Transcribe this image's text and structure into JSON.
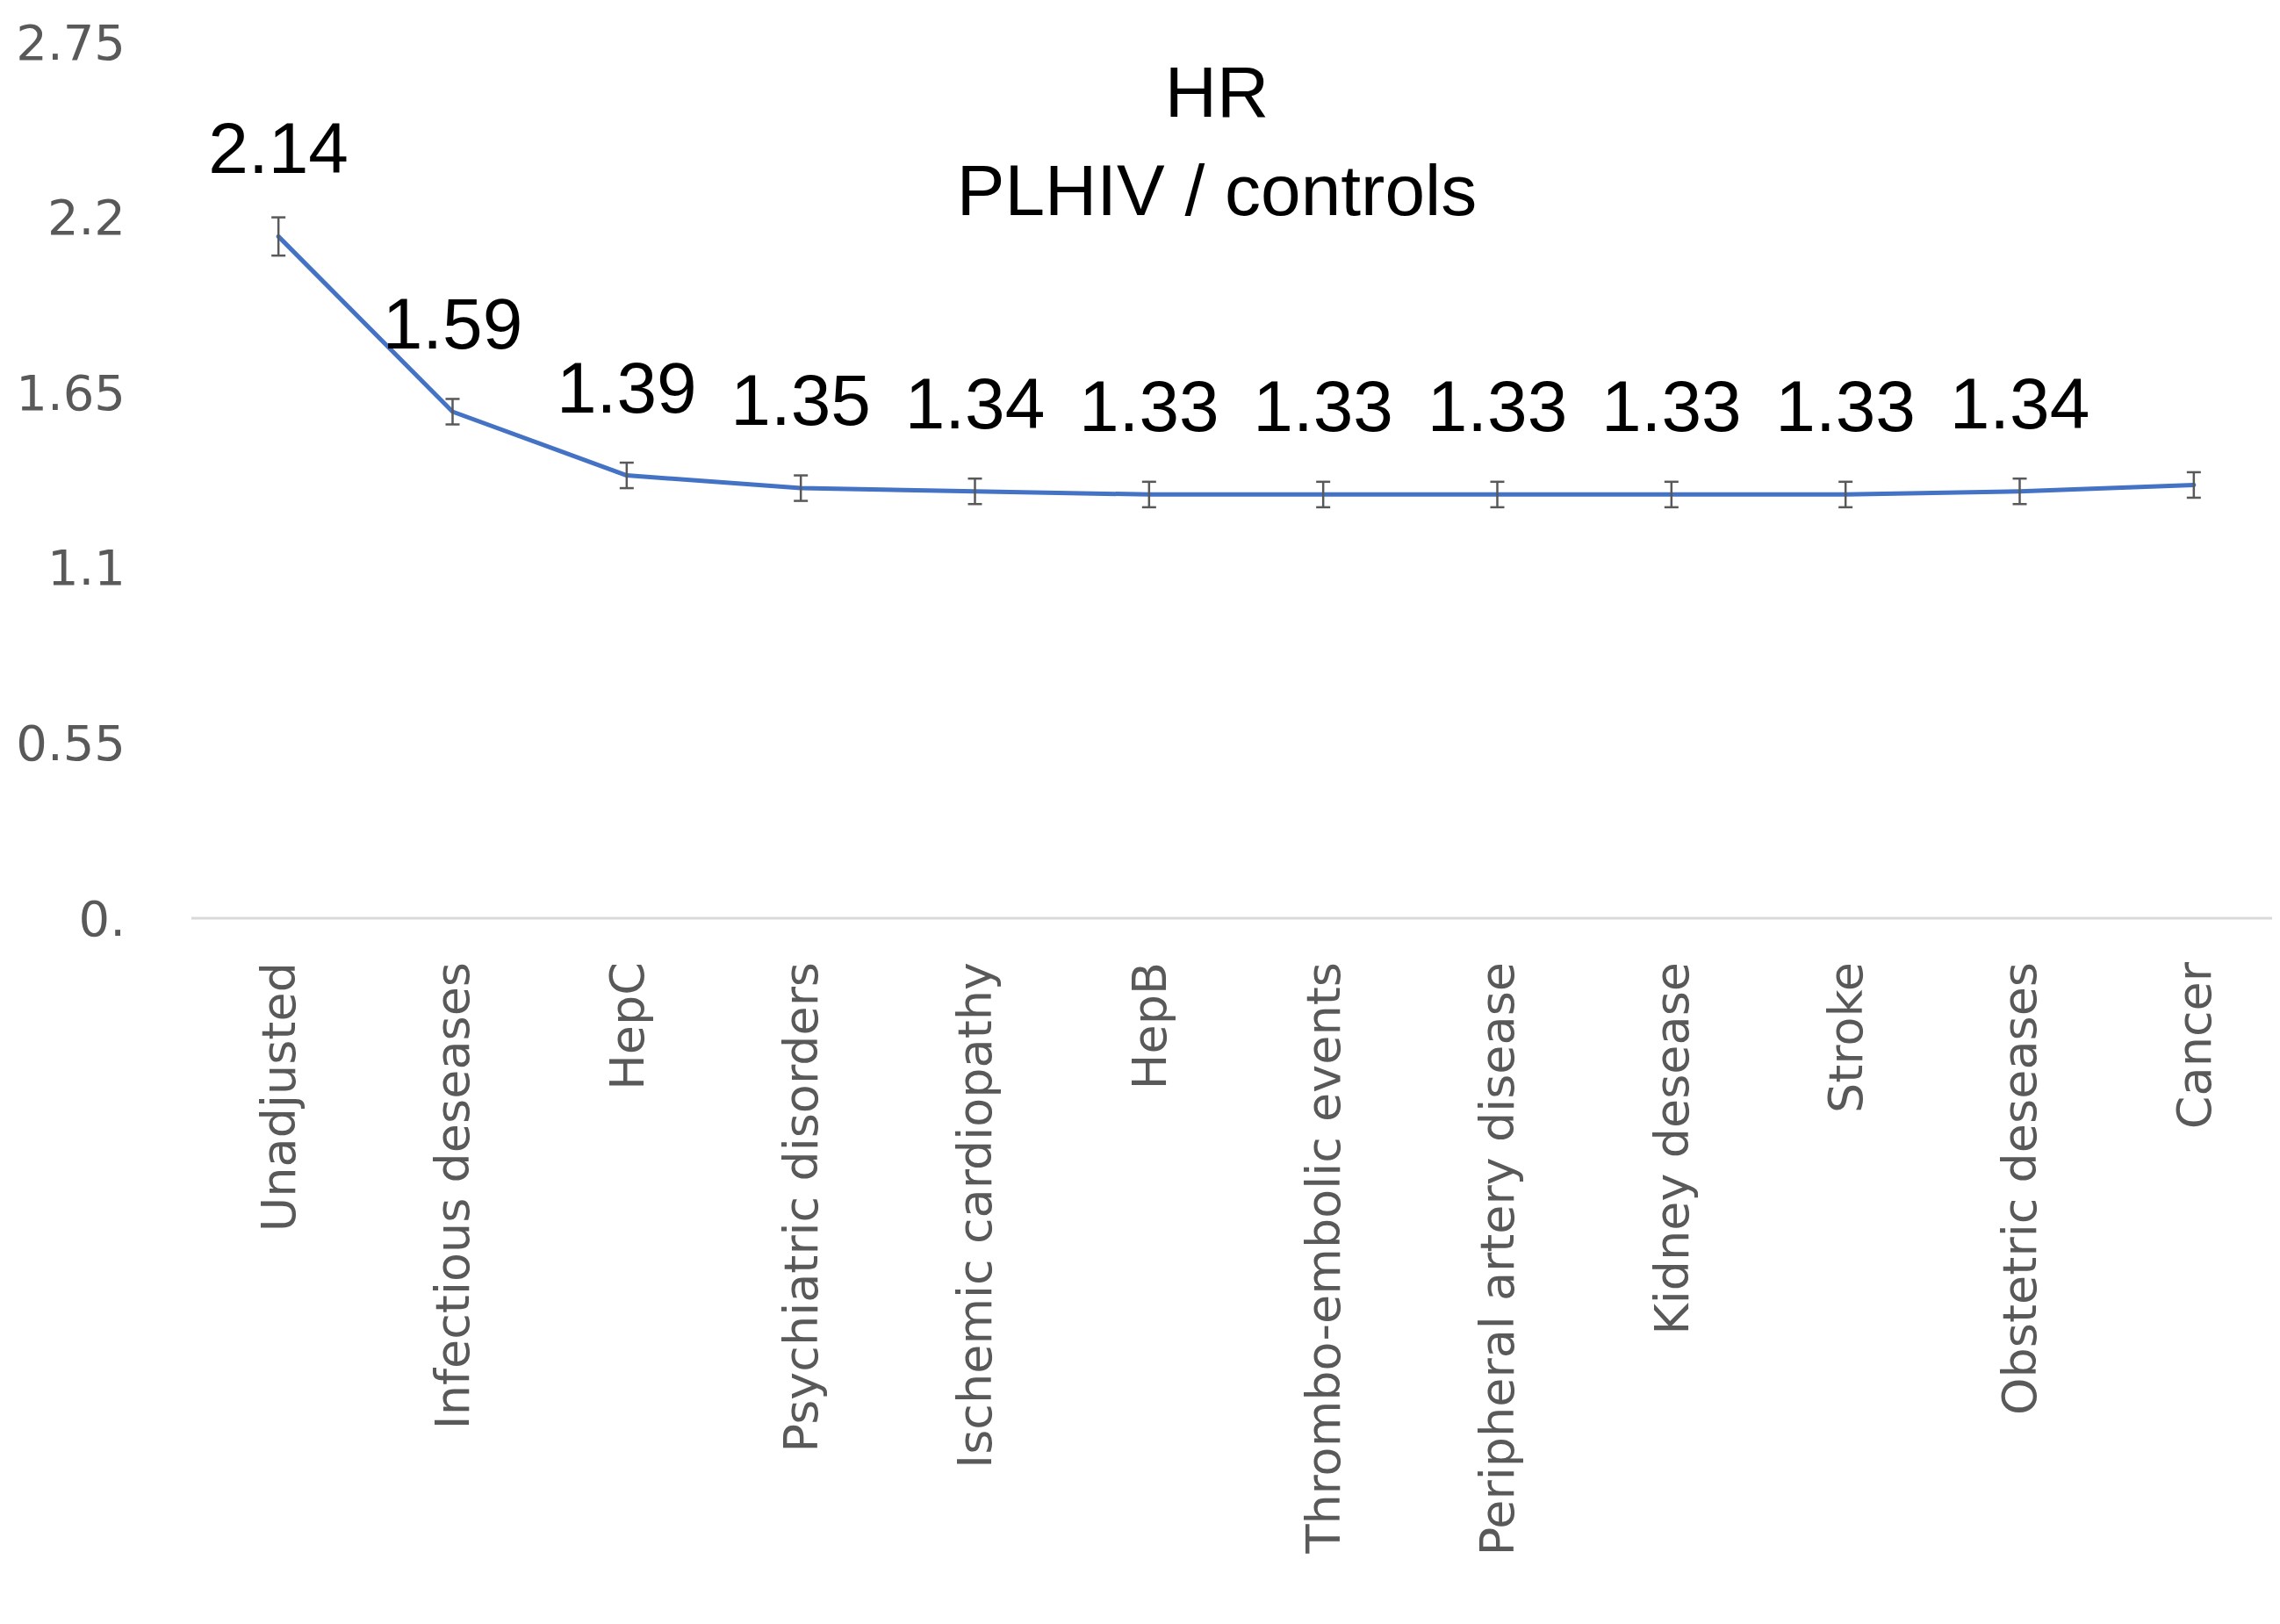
{
  "chart_data": {
    "type": "line",
    "title": "HR\nPLHIV / controls",
    "categories": [
      "Unadjusted",
      "Infectious deseases",
      "HepC",
      "Psychiatric disorders",
      "Ischemic cardiopathy",
      "HepB",
      "Thrombo-embolic events",
      "Peripheral artery disease",
      "Kidney desease",
      "Stroke",
      "Obstetric deseases",
      "Cancer"
    ],
    "series": [
      {
        "color": "#4472c4",
        "values": [
          2.14,
          1.59,
          1.39,
          1.35,
          1.34,
          1.33,
          1.33,
          1.33,
          1.33,
          1.33,
          1.34,
          1.36
        ],
        "errors": [
          0.06,
          0.04,
          0.04,
          0.04,
          0.04,
          0.04,
          0.04,
          0.04,
          0.04,
          0.04,
          0.04,
          0.04
        ],
        "value_labels": [
          "2.14",
          "1.59",
          "1.39",
          "1.35",
          "1.34",
          "1.33",
          "1.33",
          "1.33",
          "1.33",
          "1.33",
          "1.34",
          null
        ]
      }
    ],
    "ylim": [
      0,
      2.75
    ],
    "yticks": [
      {
        "value": 0,
        "label": "0."
      },
      0.55,
      1.1,
      1.65,
      2.2,
      2.75
    ],
    "marker": "none",
    "line_style": "solid"
  }
}
